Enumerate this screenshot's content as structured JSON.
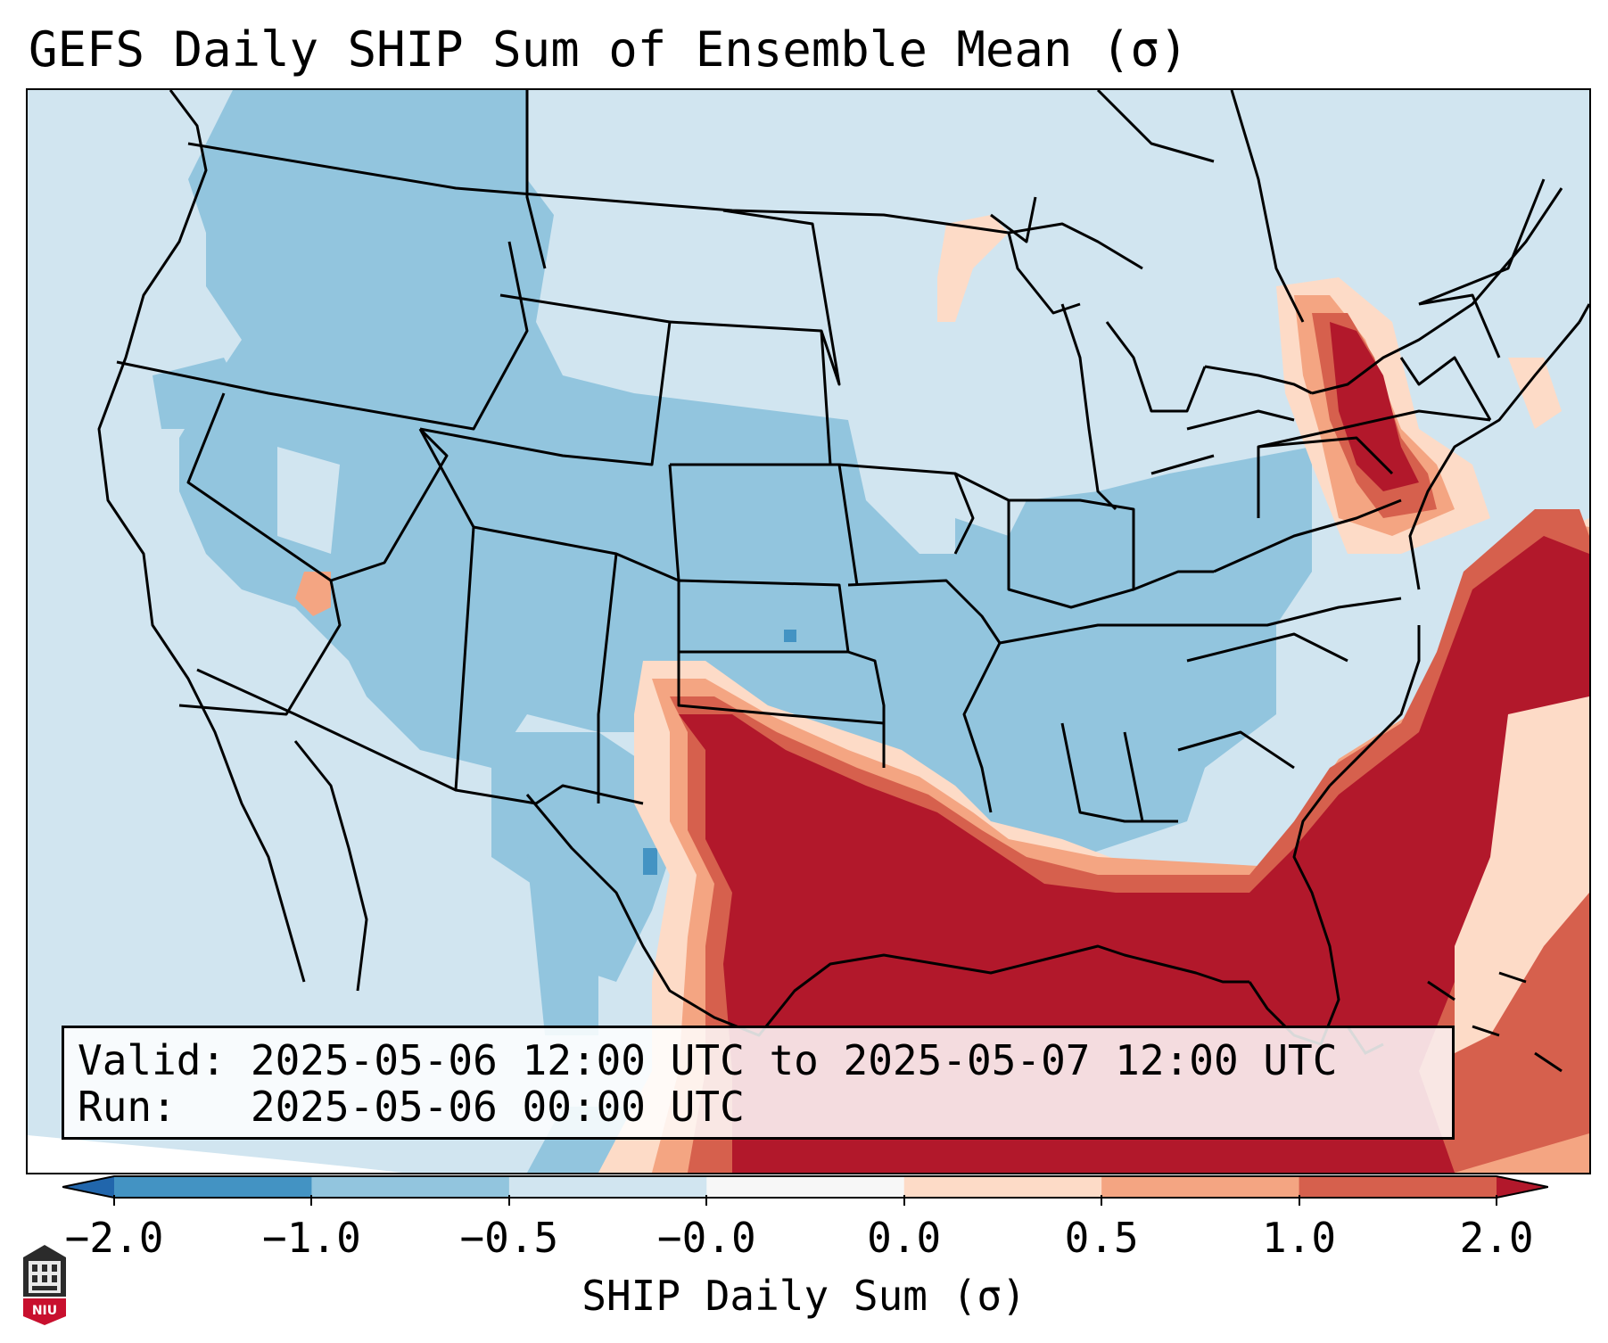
{
  "title": "GEFS Daily SHIP Sum of Ensemble Mean (σ)",
  "info": {
    "valid_label": "Valid:",
    "valid_value": "2025-05-06 12:00 UTC to 2025-05-07 12:00 UTC",
    "run_label": "Run:",
    "run_value": "2025-05-06 00:00 UTC"
  },
  "colorbar": {
    "label": "SHIP Daily Sum (σ)",
    "tick_labels": [
      "−2.0",
      "−1.0",
      "−0.5",
      "−0.0",
      "0.0",
      "0.5",
      "1.0",
      "2.0"
    ],
    "bins": [
      {
        "from": "-2.0",
        "to": "-1.0",
        "color": "#4393c3"
      },
      {
        "from": "-1.0",
        "to": "-0.5",
        "color": "#92c5de"
      },
      {
        "from": "-0.5",
        "to": "-0.0",
        "color": "#d1e5f0"
      },
      {
        "from": "-0.0",
        "to": "0.0",
        "color": "#f7f7f7"
      },
      {
        "from": "0.0",
        "to": "0.5",
        "color": "#fddbc7"
      },
      {
        "from": "0.5",
        "to": "1.0",
        "color": "#f4a582"
      },
      {
        "from": "1.0",
        "to": "2.0",
        "color": "#d6604d"
      }
    ],
    "under_color": "#2166ac",
    "over_color": "#b2182b",
    "extend": "both"
  },
  "map": {
    "region": "Contiguous United States",
    "projection": "Lambert Conformal",
    "ocean_fill": "#d1e5f0",
    "borders": [
      "coastlines",
      "country borders",
      "state borders"
    ]
  },
  "logo": {
    "name": "Northern Illinois University",
    "text": "NIU"
  }
}
